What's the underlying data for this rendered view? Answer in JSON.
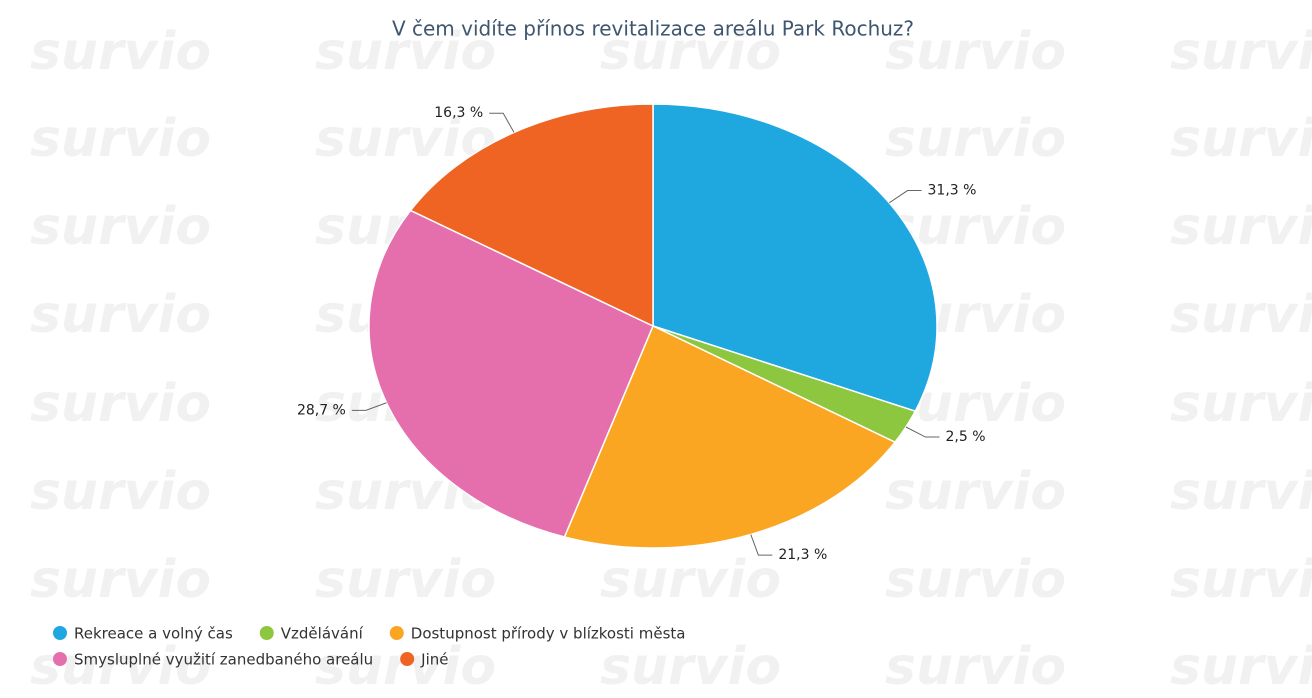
{
  "chart_data": {
    "type": "pie",
    "title": "V čem vidíte přínos revitalizace areálu Park Rochuz?",
    "watermark": "survio",
    "categories": [
      "Rekreace a volný čas",
      "Vzdělávání",
      "Dostupnost přírody v blízkosti města",
      "Smysluplné využití zanedbaného areálu",
      "Jiné"
    ],
    "values": [
      31.3,
      2.5,
      21.3,
      28.7,
      16.3
    ],
    "value_labels": [
      "31,3 %",
      "2,5 %",
      "21,3 %",
      "28,7 %",
      "16,3 %"
    ],
    "colors": [
      "#1fa8e0",
      "#8dc63f",
      "#faa623",
      "#e56fad",
      "#ef6423"
    ],
    "legend": "bottom-left"
  }
}
